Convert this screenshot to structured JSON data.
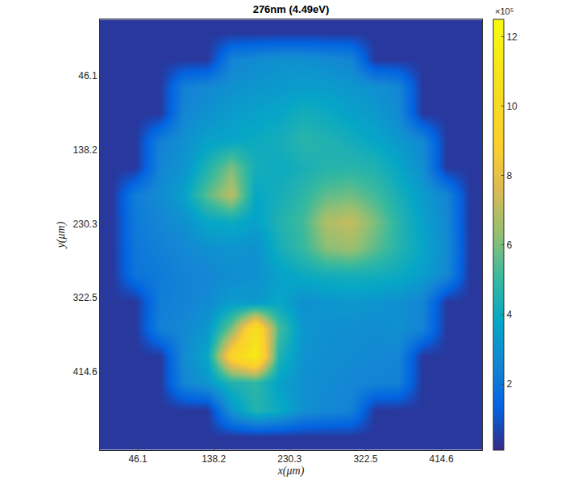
{
  "chart_data": {
    "type": "heatmap",
    "title": "276nm (4.49eV)",
    "x_label": "x(μm)",
    "y_label": "y(μm)",
    "x": [
      14.5,
      43.5,
      72.5,
      101.5,
      130.5,
      159.5,
      188.5,
      217.5,
      246.5,
      275.5,
      304.5,
      333.5,
      362.5,
      391.5,
      420.5,
      449.5
    ],
    "y": [
      -7,
      26,
      60,
      93,
      127,
      160,
      194,
      227,
      261,
      294,
      328,
      361,
      395,
      428,
      462,
      495
    ],
    "z": [
      [
        40000,
        40000,
        40000,
        40000,
        40000,
        40000,
        40000,
        40000,
        40000,
        40000,
        40000,
        40000,
        40000,
        40000,
        40000,
        40000
      ],
      [
        40000,
        40000,
        40000,
        40000,
        40000,
        250000,
        280000,
        300000,
        300000,
        280000,
        260000,
        40000,
        40000,
        40000,
        40000,
        40000
      ],
      [
        40000,
        40000,
        40000,
        240000,
        270000,
        300000,
        320000,
        330000,
        350000,
        340000,
        320000,
        300000,
        260000,
        40000,
        40000,
        40000
      ],
      [
        40000,
        40000,
        40000,
        260000,
        300000,
        340000,
        360000,
        380000,
        420000,
        400000,
        360000,
        330000,
        280000,
        40000,
        40000,
        40000
      ],
      [
        40000,
        40000,
        240000,
        300000,
        360000,
        380000,
        400000,
        420000,
        470000,
        450000,
        420000,
        380000,
        330000,
        270000,
        40000,
        40000
      ],
      [
        40000,
        40000,
        260000,
        310000,
        450000,
        600000,
        420000,
        400000,
        430000,
        460000,
        470000,
        450000,
        380000,
        290000,
        40000,
        40000
      ],
      [
        40000,
        230000,
        280000,
        360000,
        550000,
        700000,
        380000,
        420000,
        480000,
        560000,
        580000,
        520000,
        430000,
        340000,
        260000,
        40000
      ],
      [
        40000,
        220000,
        260000,
        300000,
        380000,
        400000,
        360000,
        450000,
        520000,
        680000,
        720000,
        600000,
        470000,
        360000,
        270000,
        40000
      ],
      [
        40000,
        210000,
        240000,
        270000,
        300000,
        320000,
        300000,
        420000,
        500000,
        620000,
        650000,
        560000,
        460000,
        380000,
        280000,
        40000
      ],
      [
        40000,
        200000,
        220000,
        250000,
        260000,
        290000,
        300000,
        360000,
        400000,
        420000,
        430000,
        420000,
        400000,
        350000,
        270000,
        40000
      ],
      [
        40000,
        40000,
        230000,
        250000,
        280000,
        340000,
        330000,
        380000,
        300000,
        320000,
        330000,
        320000,
        300000,
        260000,
        40000,
        40000
      ],
      [
        40000,
        40000,
        240000,
        270000,
        320000,
        600000,
        1050000,
        520000,
        320000,
        300000,
        290000,
        280000,
        300000,
        250000,
        40000,
        40000
      ],
      [
        40000,
        40000,
        40000,
        280000,
        380000,
        950000,
        1150000,
        450000,
        310000,
        290000,
        280000,
        270000,
        260000,
        40000,
        40000,
        40000
      ],
      [
        40000,
        40000,
        40000,
        260000,
        320000,
        450000,
        480000,
        360000,
        300000,
        280000,
        260000,
        250000,
        240000,
        40000,
        40000,
        40000
      ],
      [
        40000,
        40000,
        40000,
        40000,
        40000,
        320000,
        460000,
        400000,
        300000,
        270000,
        250000,
        40000,
        40000,
        40000,
        40000,
        40000
      ],
      [
        40000,
        40000,
        40000,
        40000,
        40000,
        40000,
        40000,
        40000,
        40000,
        40000,
        40000,
        40000,
        40000,
        40000,
        40000,
        40000
      ]
    ],
    "xlim": [
      0,
      464
    ],
    "ylim": [
      512,
      -24
    ],
    "xticks": [
      46.1,
      138.2,
      230.3,
      322.5,
      414.6
    ],
    "yticks": [
      46.1,
      138.2,
      230.3,
      322.5,
      414.6
    ],
    "colorbar": {
      "range": [
        10000,
        1250000
      ],
      "ticks": [
        {
          "value": 200000,
          "label": "2"
        },
        {
          "value": 400000,
          "label": "4"
        },
        {
          "value": 600000,
          "label": "6"
        },
        {
          "value": 800000,
          "label": "8"
        },
        {
          "value": 1000000,
          "label": "10"
        },
        {
          "value": 1200000,
          "label": "12"
        }
      ],
      "label": "×10⁵"
    }
  }
}
